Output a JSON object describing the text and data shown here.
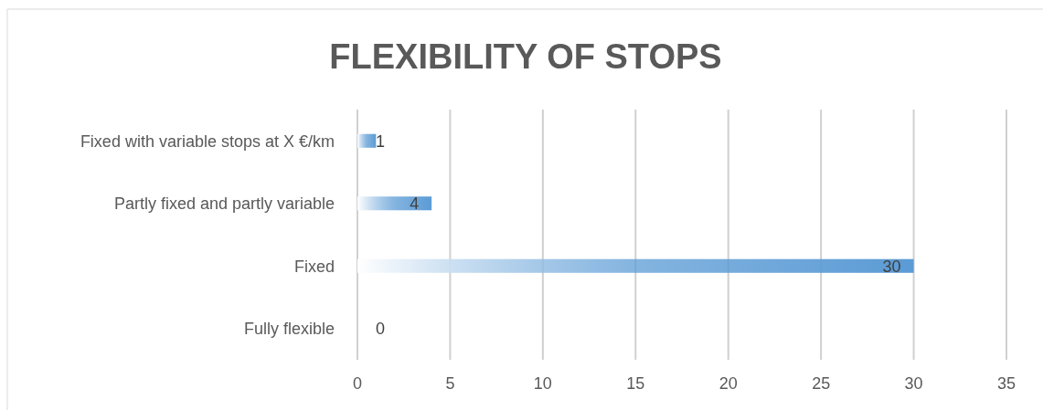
{
  "chart_data": {
    "type": "bar",
    "title": "FLEXIBILITY OF STOPS",
    "orientation": "horizontal",
    "categories": [
      "Fixed with variable stops at X €/km",
      "Partly fixed and partly variable",
      "Fixed",
      "Fully flexible"
    ],
    "values": [
      1,
      4,
      30,
      0
    ],
    "color": "#5b9bd5",
    "xlim": [
      0,
      35
    ],
    "xticks": [
      0,
      5,
      10,
      15,
      20,
      25,
      30,
      35
    ],
    "grid": "x",
    "data_labels": true
  }
}
